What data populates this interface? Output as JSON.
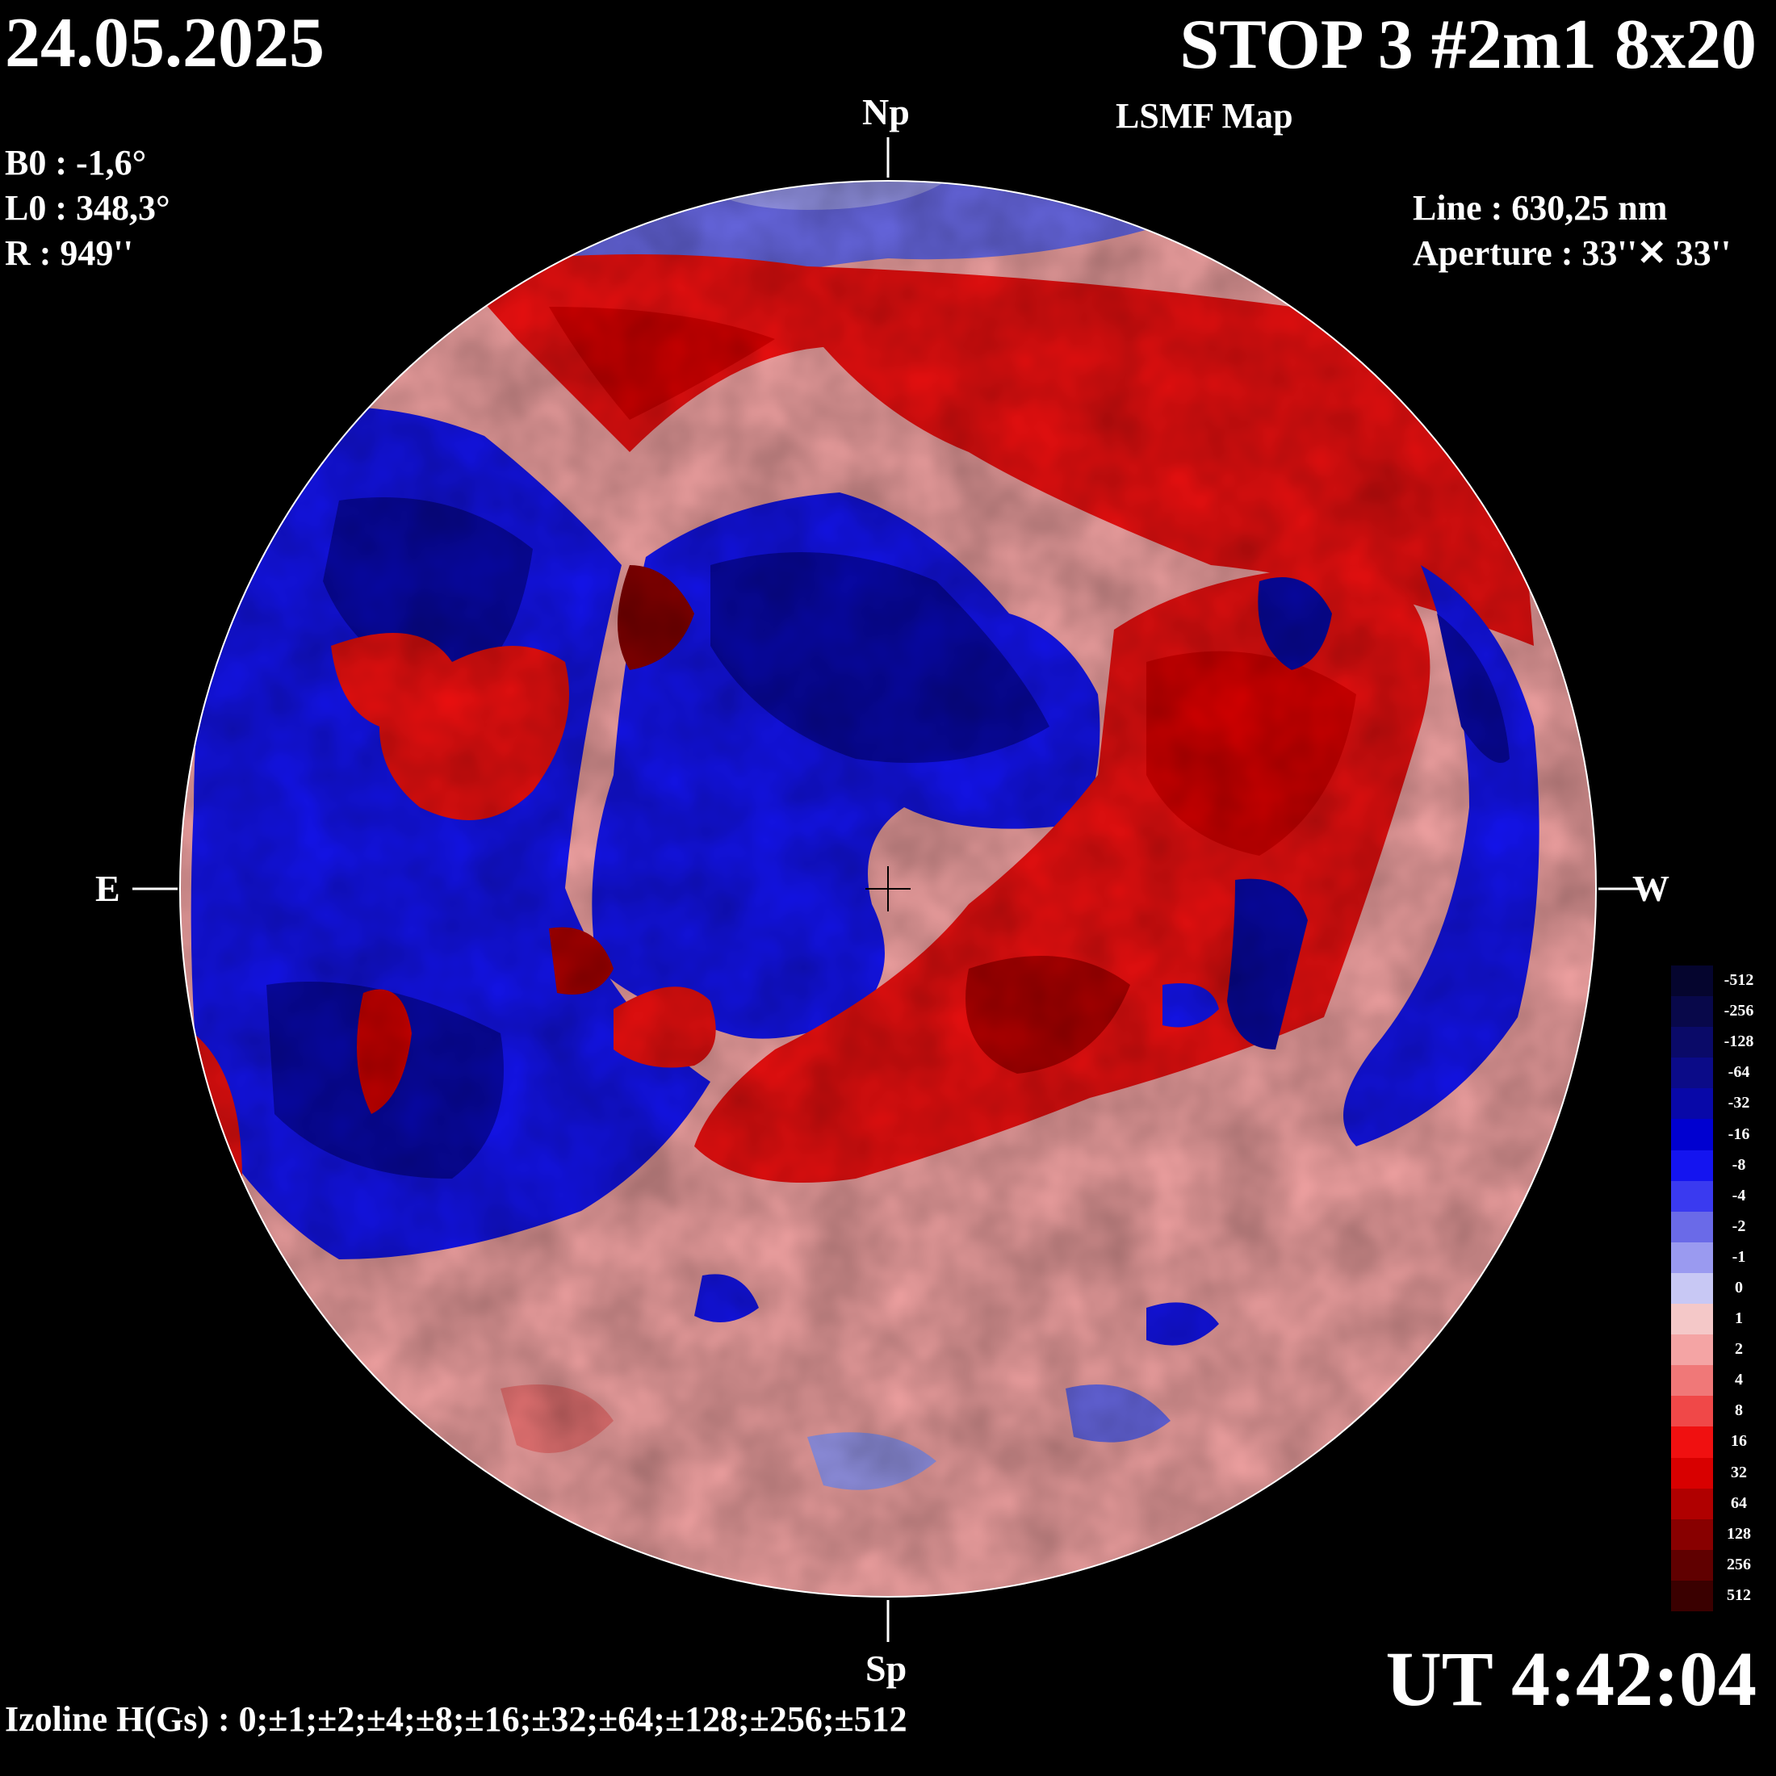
{
  "header": {
    "date": "24.05.2025",
    "title": "STOP 3 #2m1 8x20",
    "subtitle": "LSMF  Map"
  },
  "parameters": {
    "b0": "B0 : -1,6°",
    "l0": "L0 : 348,3°",
    "r": "R  : 949''"
  },
  "instrument": {
    "line": "Line :  630,25 nm",
    "aperture": "Aperture : 33''✕ 33''"
  },
  "time": "UT 4:42:04",
  "izoline": "Izoline H(Gs) : 0;±1;±2;±4;±8;±16;±32;±64;±128;±256;±512",
  "cardinals": {
    "north": "Np",
    "south": "Sp",
    "east": "E",
    "west": "W"
  },
  "legend": {
    "labels": [
      "-512",
      "-256",
      "-128",
      "-64",
      "-32",
      "-16",
      "-8",
      "-4",
      "-2",
      "-1",
      "0",
      "1",
      "2",
      "4",
      "8",
      "16",
      "32",
      "64",
      "128",
      "256",
      "512"
    ],
    "colors": [
      "#05052e",
      "#08084a",
      "#0a0a68",
      "#0b0b88",
      "#0808a8",
      "#0000d0",
      "#1414f0",
      "#3a3af0",
      "#6a6ae8",
      "#9a9af0",
      "#c8c8f4",
      "#f4c8c8",
      "#f4a4a4",
      "#f07878",
      "#f04848",
      "#f01010",
      "#d80000",
      "#b00000",
      "#880000",
      "#600000",
      "#3a0000"
    ]
  },
  "colors": {
    "negative_strong": "#0808a8",
    "negative_medium": "#1414f0",
    "negative_weak": "#9a9af0",
    "positive_weak": "#f4a4a4",
    "positive_medium": "#f01010",
    "positive_strong": "#880000",
    "isoline_zero": "#ffffff"
  }
}
